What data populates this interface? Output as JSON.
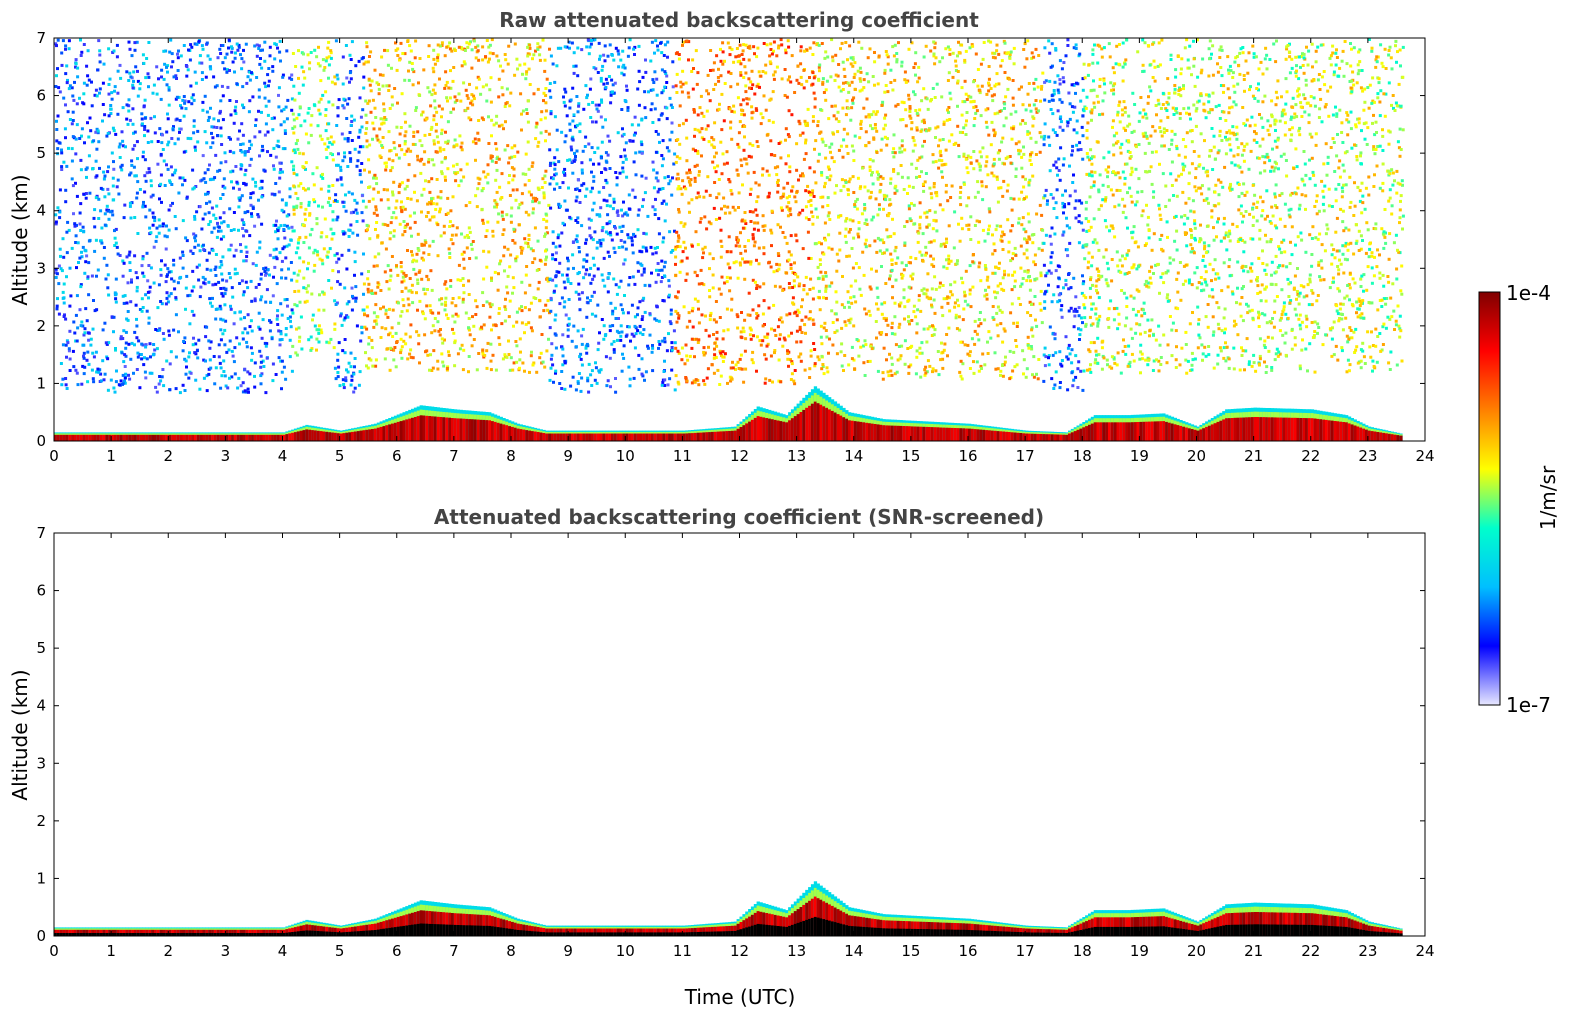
{
  "chart_data": [
    {
      "type": "heatmap",
      "title": "Raw attenuated backscattering coefficient",
      "xlabel": "",
      "ylabel": "Altitude (km)",
      "xlim": [
        0,
        24
      ],
      "ylim": [
        0,
        7
      ],
      "xticks": [
        "0",
        "1",
        "2",
        "3",
        "4",
        "5",
        "6",
        "7",
        "8",
        "9",
        "10",
        "11",
        "12",
        "13",
        "14",
        "15",
        "16",
        "17",
        "18",
        "19",
        "20",
        "21",
        "22",
        "23",
        "24"
      ],
      "yticks": [
        "0",
        "1",
        "2",
        "3",
        "4",
        "5",
        "6",
        "7"
      ],
      "noise_regions": [
        {
          "t0": 0.0,
          "t1": 4.15,
          "z_bottom": 0.85,
          "level": 0.22
        },
        {
          "t0": 4.15,
          "t1": 4.9,
          "z_bottom": 1.4,
          "level": 0.5
        },
        {
          "t0": 4.9,
          "t1": 5.4,
          "z_bottom": 0.85,
          "level": 0.22
        },
        {
          "t0": 5.4,
          "t1": 8.65,
          "z_bottom": 1.2,
          "level": 0.62
        },
        {
          "t0": 8.65,
          "t1": 10.85,
          "z_bottom": 0.85,
          "level": 0.22
        },
        {
          "t0": 10.85,
          "t1": 13.3,
          "z_bottom": 1.0,
          "level": 0.7
        },
        {
          "t0": 13.3,
          "t1": 17.3,
          "z_bottom": 1.1,
          "level": 0.6
        },
        {
          "t0": 17.3,
          "t1": 18.0,
          "z_bottom": 0.9,
          "level": 0.22
        },
        {
          "t0": 18.0,
          "t1": 23.6,
          "z_bottom": 1.2,
          "level": 0.55
        }
      ],
      "aerosol_layer_top_km": [
        {
          "t": 0.0,
          "z": 0.15
        },
        {
          "t": 4.0,
          "z": 0.15
        },
        {
          "t": 4.4,
          "z": 0.28
        },
        {
          "t": 5.0,
          "z": 0.18
        },
        {
          "t": 5.6,
          "z": 0.3
        },
        {
          "t": 6.4,
          "z": 0.62
        },
        {
          "t": 7.0,
          "z": 0.55
        },
        {
          "t": 7.6,
          "z": 0.5
        },
        {
          "t": 8.1,
          "z": 0.3
        },
        {
          "t": 8.6,
          "z": 0.18
        },
        {
          "t": 11.0,
          "z": 0.18
        },
        {
          "t": 11.9,
          "z": 0.25
        },
        {
          "t": 12.3,
          "z": 0.6
        },
        {
          "t": 12.8,
          "z": 0.45
        },
        {
          "t": 13.3,
          "z": 0.95
        },
        {
          "t": 13.9,
          "z": 0.5
        },
        {
          "t": 14.5,
          "z": 0.38
        },
        {
          "t": 16.0,
          "z": 0.3
        },
        {
          "t": 17.0,
          "z": 0.18
        },
        {
          "t": 17.7,
          "z": 0.15
        },
        {
          "t": 18.2,
          "z": 0.45
        },
        {
          "t": 18.8,
          "z": 0.45
        },
        {
          "t": 19.4,
          "z": 0.48
        },
        {
          "t": 20.0,
          "z": 0.25
        },
        {
          "t": 20.5,
          "z": 0.55
        },
        {
          "t": 21.0,
          "z": 0.58
        },
        {
          "t": 22.0,
          "z": 0.55
        },
        {
          "t": 22.6,
          "z": 0.45
        },
        {
          "t": 23.0,
          "z": 0.25
        },
        {
          "t": 23.6,
          "z": 0.12
        }
      ],
      "data_end_hour": 23.6
    },
    {
      "type": "heatmap",
      "title": "Attenuated backscattering coefficient (SNR-screened)",
      "xlabel": "Time (UTC)",
      "ylabel": "Altitude (km)",
      "xlim": [
        0,
        24
      ],
      "ylim": [
        0,
        7
      ],
      "xticks": [
        "0",
        "1",
        "2",
        "3",
        "4",
        "5",
        "6",
        "7",
        "8",
        "9",
        "10",
        "11",
        "12",
        "13",
        "14",
        "15",
        "16",
        "17",
        "18",
        "19",
        "20",
        "21",
        "22",
        "23",
        "24"
      ],
      "yticks": [
        "0",
        "1",
        "2",
        "3",
        "4",
        "5",
        "6",
        "7"
      ],
      "noise_regions": [],
      "aerosol_layer_top_km": [
        {
          "t": 0.0,
          "z": 0.15
        },
        {
          "t": 4.0,
          "z": 0.15
        },
        {
          "t": 4.4,
          "z": 0.28
        },
        {
          "t": 5.0,
          "z": 0.18
        },
        {
          "t": 5.6,
          "z": 0.3
        },
        {
          "t": 6.4,
          "z": 0.62
        },
        {
          "t": 7.0,
          "z": 0.55
        },
        {
          "t": 7.6,
          "z": 0.5
        },
        {
          "t": 8.1,
          "z": 0.3
        },
        {
          "t": 8.6,
          "z": 0.18
        },
        {
          "t": 11.0,
          "z": 0.18
        },
        {
          "t": 11.9,
          "z": 0.25
        },
        {
          "t": 12.3,
          "z": 0.6
        },
        {
          "t": 12.8,
          "z": 0.45
        },
        {
          "t": 13.3,
          "z": 0.95
        },
        {
          "t": 13.9,
          "z": 0.5
        },
        {
          "t": 14.5,
          "z": 0.38
        },
        {
          "t": 16.0,
          "z": 0.3
        },
        {
          "t": 17.0,
          "z": 0.18
        },
        {
          "t": 17.7,
          "z": 0.15
        },
        {
          "t": 18.2,
          "z": 0.45
        },
        {
          "t": 18.8,
          "z": 0.45
        },
        {
          "t": 19.4,
          "z": 0.48
        },
        {
          "t": 20.0,
          "z": 0.25
        },
        {
          "t": 20.5,
          "z": 0.55
        },
        {
          "t": 21.0,
          "z": 0.58
        },
        {
          "t": 22.0,
          "z": 0.55
        },
        {
          "t": 22.6,
          "z": 0.45
        },
        {
          "t": 23.0,
          "z": 0.25
        },
        {
          "t": 23.6,
          "z": 0.12
        }
      ],
      "data_end_hour": 23.6
    }
  ],
  "colorbar": {
    "max_label": "1e-4",
    "min_label": "1e-7",
    "unit_label": "1/m/sr",
    "colormap": "jet",
    "colors": [
      "#e8e8ff",
      "#0000ff",
      "#00bfff",
      "#00ffcc",
      "#ffff00",
      "#ff8000",
      "#ff0000",
      "#800000"
    ]
  }
}
